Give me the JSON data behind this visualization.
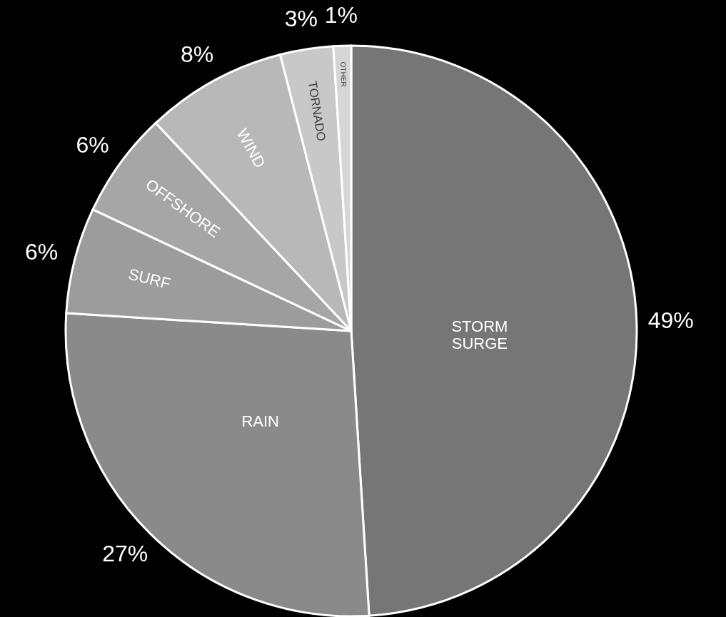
{
  "chart_data": {
    "type": "pie",
    "categories": [
      "STORM SURGE",
      "RAIN",
      "SURF",
      "OFFSHORE",
      "WIND",
      "TORNADO",
      "OTHER"
    ],
    "values": [
      49,
      27,
      6,
      6,
      8,
      3,
      1
    ],
    "value_labels": [
      "49%",
      "27%",
      "6%",
      "6%",
      "8%",
      "3%",
      "1%"
    ],
    "colors": [
      "#767676",
      "#8a8a8a",
      "#9c9c9c",
      "#a6a6a6",
      "#b8b8b8",
      "#c8c8c8",
      "#d6d6d6"
    ]
  }
}
